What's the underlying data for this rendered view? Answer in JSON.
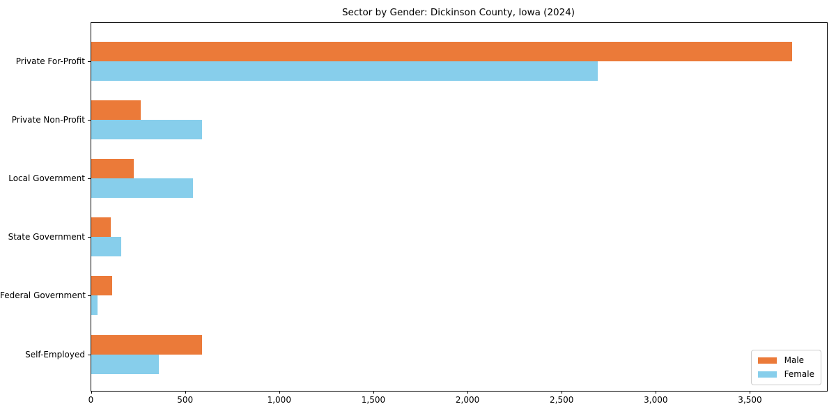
{
  "chart_data": {
    "type": "bar",
    "orientation": "horizontal",
    "title": "Sector by Gender: Dickinson County, Iowa (2024)",
    "categories": [
      "Private For-Profit",
      "Private Non-Profit",
      "Local Government",
      "State Government",
      "Federal Government",
      "Self-Employed"
    ],
    "series": [
      {
        "name": "Male",
        "color": "#EB7A39",
        "values": [
          3722,
          262,
          227,
          105,
          110,
          587
        ]
      },
      {
        "name": "Female",
        "color": "#87CEEB",
        "values": [
          2690,
          590,
          540,
          158,
          34,
          360
        ]
      }
    ],
    "xlim": [
      0,
      3907
    ],
    "xticks": [
      0,
      500,
      1000,
      1500,
      2000,
      2500,
      3000,
      3500
    ],
    "xtick_labels": [
      "0",
      "500",
      "1,000",
      "1,500",
      "2,000",
      "2,500",
      "3,000",
      "3,500"
    ],
    "ylabel": "",
    "xlabel": "",
    "grid": false,
    "legend": {
      "position": "lower right",
      "entries": [
        "Male",
        "Female"
      ]
    }
  }
}
